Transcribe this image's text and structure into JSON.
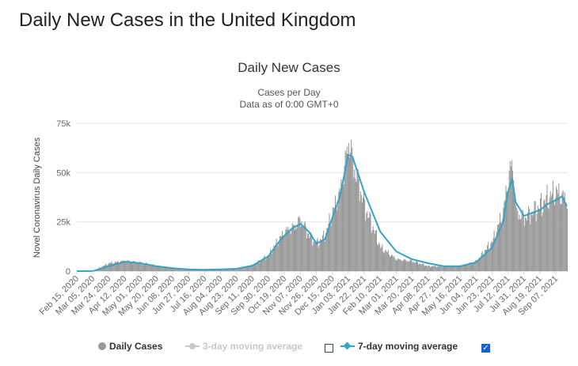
{
  "page": {
    "title": "Daily New Cases in the United Kingdom"
  },
  "chart": {
    "title": "Daily New Cases",
    "subtitle_1": "Cases per Day",
    "subtitle_2": "Data as of 0:00 GMT+0",
    "ylabel": "Novel Coronavirus Daily Cases",
    "y_ticks": [
      "0",
      "25k",
      "50k",
      "75k"
    ]
  },
  "legend": {
    "daily_cases": "Daily Cases",
    "three_day": "3-day moving average",
    "seven_day": "7-day moving average",
    "three_day_checked": false,
    "seven_day_checked": true
  },
  "colors": {
    "bars": "#999999",
    "line": "#33a3c7",
    "grid": "#e6e6e6",
    "checkbox": "#1a5fd1"
  },
  "chart_data": {
    "type": "bar",
    "title": "Daily New Cases",
    "xlabel": "",
    "ylabel": "Novel Coronavirus Daily Cases",
    "ylim": [
      0,
      75000
    ],
    "x_tick_labels": [
      "Feb 15, 2020",
      "Mar 05, 2020",
      "Mar 24, 2020",
      "Apr 12, 2020",
      "May 01, 2020",
      "May 20, 2020",
      "Jun 08, 2020",
      "Jun 27, 2020",
      "Jul 16, 2020",
      "Aug 04, 2020",
      "Aug 23, 2020",
      "Sep 11, 2020",
      "Sep 30, 2020",
      "Oct 19, 2020",
      "Nov 07, 2020",
      "Nov 26, 2020",
      "Dec 15, 2020",
      "Jan 03, 2021",
      "Jan 22, 2021",
      "Feb 10, 2021",
      "Mar 01, 2021",
      "Mar 20, 2021",
      "Apr 08, 2021",
      "Apr 27, 2021",
      "May 16, 2021",
      "Jun 04, 2021",
      "Jun 23, 2021",
      "Jul 12, 2021",
      "Jul 31, 2021",
      "Aug 19, 2021",
      "Sep 07, 2021"
    ],
    "series": [
      {
        "name": "Daily Cases",
        "type": "bar",
        "x": [
          "2020-02-15",
          "2020-03-05",
          "2020-03-24",
          "2020-04-12",
          "2020-05-01",
          "2020-05-20",
          "2020-06-08",
          "2020-06-27",
          "2020-07-16",
          "2020-08-04",
          "2020-08-23",
          "2020-09-11",
          "2020-09-30",
          "2020-10-09",
          "2020-10-19",
          "2020-10-29",
          "2020-11-07",
          "2020-11-17",
          "2020-11-26",
          "2020-12-06",
          "2020-12-15",
          "2020-12-24",
          "2021-01-01",
          "2021-01-03",
          "2021-01-08",
          "2021-01-22",
          "2021-02-10",
          "2021-03-01",
          "2021-03-20",
          "2021-04-08",
          "2021-04-27",
          "2021-05-16",
          "2021-06-04",
          "2021-06-23",
          "2021-07-06",
          "2021-07-12",
          "2021-07-17",
          "2021-07-21",
          "2021-07-31",
          "2021-08-19",
          "2021-08-28",
          "2021-09-07",
          "2021-09-20"
        ],
        "values": [
          0,
          50,
          4000,
          5200,
          4200,
          2500,
          1500,
          800,
          600,
          900,
          1200,
          3000,
          8000,
          14000,
          20000,
          22000,
          26000,
          18000,
          14000,
          18000,
          30000,
          40000,
          60000,
          67000,
          55000,
          33000,
          12000,
          6000,
          5000,
          2500,
          2500,
          2500,
          5000,
          15000,
          30000,
          48000,
          54000,
          30000,
          27000,
          33000,
          37000,
          40000,
          36000
        ]
      },
      {
        "name": "7-day moving average",
        "type": "line",
        "x": [
          "2020-02-15",
          "2020-03-05",
          "2020-03-24",
          "2020-04-12",
          "2020-05-01",
          "2020-05-20",
          "2020-06-08",
          "2020-06-27",
          "2020-07-16",
          "2020-08-04",
          "2020-08-23",
          "2020-09-11",
          "2020-09-30",
          "2020-10-09",
          "2020-10-19",
          "2020-10-29",
          "2020-11-07",
          "2020-11-17",
          "2020-11-26",
          "2020-12-06",
          "2020-12-15",
          "2020-12-24",
          "2021-01-03",
          "2021-01-08",
          "2021-01-22",
          "2021-02-10",
          "2021-03-01",
          "2021-03-20",
          "2021-04-08",
          "2021-04-27",
          "2021-05-16",
          "2021-06-04",
          "2021-06-23",
          "2021-07-06",
          "2021-07-12",
          "2021-07-17",
          "2021-07-21",
          "2021-07-31",
          "2021-08-19",
          "2021-08-28",
          "2021-09-07",
          "2021-09-14",
          "2021-09-20"
        ],
        "values": [
          0,
          30,
          2500,
          4800,
          4000,
          2500,
          1500,
          900,
          700,
          900,
          1200,
          2800,
          7500,
          13000,
          18000,
          22000,
          24000,
          20000,
          14000,
          16000,
          27000,
          38000,
          59000,
          58000,
          40000,
          20000,
          10000,
          6000,
          4000,
          2500,
          2500,
          4500,
          12000,
          25000,
          40000,
          47000,
          35000,
          28000,
          31000,
          34000,
          36000,
          38000,
          33000
        ]
      }
    ],
    "legend_position": "bottom",
    "grid": true
  }
}
